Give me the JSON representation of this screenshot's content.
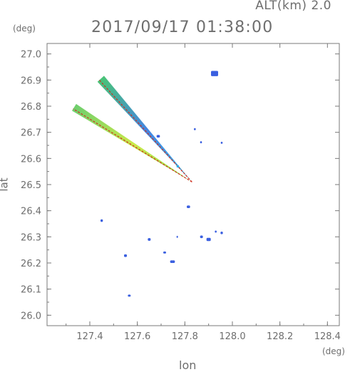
{
  "header": {
    "altitude_label": "ALT(km) 2.0",
    "timestamp": "2017/09/17 01:38:00"
  },
  "chart_data": {
    "type": "scatter",
    "title": "",
    "xlabel": "lon",
    "ylabel": "lat",
    "xunit": "(deg)",
    "yunit": "(deg)",
    "xlim": [
      127.22,
      128.45
    ],
    "ylim": [
      25.96,
      27.04
    ],
    "xticks": [
      127.4,
      127.6,
      127.8,
      128.0,
      128.2,
      128.4
    ],
    "yticks": [
      26.0,
      26.1,
      26.2,
      26.3,
      26.4,
      26.5,
      26.6,
      26.7,
      26.8,
      26.9,
      27.0
    ],
    "xtick_labels": [
      "127.4",
      "127.6",
      "127.8",
      "128.0",
      "128.2",
      "128.4"
    ],
    "ytick_labels": [
      "26.0",
      "26.1",
      "26.2",
      "26.3",
      "26.4",
      "26.5",
      "26.6",
      "26.7",
      "26.8",
      "26.9",
      "27.0"
    ],
    "grid": false,
    "colors": {
      "axis": "#7a7a7a",
      "echo_blue": "#3a5fe0",
      "echo_cyan": "#2ab0e8",
      "echo_green": "#88dd44",
      "echo_yellow": "#e6e640",
      "echo_red": "#d03020"
    },
    "streaks": [
      {
        "name": "upper",
        "from": [
          127.83,
          26.51
        ],
        "to": [
          127.44,
          26.9
        ],
        "width_deg": 0.012,
        "fill": [
          "#2ab0e8",
          "#3a7fe0",
          "#40c070"
        ]
      },
      {
        "name": "lower",
        "from": [
          127.83,
          26.51
        ],
        "to": [
          127.33,
          26.79
        ],
        "width_deg": 0.01,
        "fill": [
          "#88dd44",
          "#c8e840",
          "#66cc66"
        ]
      }
    ],
    "echoes": [
      {
        "x": 127.925,
        "y": 26.925,
        "w": 0.03,
        "h": 0.02,
        "color": "#3a5fe0"
      },
      {
        "x": 127.45,
        "y": 26.362,
        "w": 0.01,
        "h": 0.01,
        "color": "#3a5fe0"
      },
      {
        "x": 127.65,
        "y": 26.29,
        "w": 0.012,
        "h": 0.01,
        "color": "#3a5fe0"
      },
      {
        "x": 127.55,
        "y": 26.228,
        "w": 0.012,
        "h": 0.01,
        "color": "#3a5fe0"
      },
      {
        "x": 127.715,
        "y": 26.24,
        "w": 0.012,
        "h": 0.008,
        "color": "#3a5fe0"
      },
      {
        "x": 127.748,
        "y": 26.205,
        "w": 0.02,
        "h": 0.01,
        "color": "#3a5fe0"
      },
      {
        "x": 127.566,
        "y": 26.075,
        "w": 0.012,
        "h": 0.008,
        "color": "#3a5fe0"
      },
      {
        "x": 127.87,
        "y": 26.3,
        "w": 0.012,
        "h": 0.01,
        "color": "#3a5fe0"
      },
      {
        "x": 127.9,
        "y": 26.29,
        "w": 0.018,
        "h": 0.012,
        "color": "#3a5fe0"
      },
      {
        "x": 127.955,
        "y": 26.315,
        "w": 0.01,
        "h": 0.01,
        "color": "#3a5fe0"
      },
      {
        "x": 127.93,
        "y": 26.32,
        "w": 0.008,
        "h": 0.008,
        "color": "#3a5fe0"
      },
      {
        "x": 127.815,
        "y": 26.415,
        "w": 0.014,
        "h": 0.01,
        "color": "#3a5fe0"
      },
      {
        "x": 127.688,
        "y": 26.685,
        "w": 0.014,
        "h": 0.01,
        "color": "#3a5fe0"
      },
      {
        "x": 127.868,
        "y": 26.662,
        "w": 0.008,
        "h": 0.008,
        "color": "#3a5fe0"
      },
      {
        "x": 127.955,
        "y": 26.66,
        "w": 0.008,
        "h": 0.008,
        "color": "#3a5fe0"
      },
      {
        "x": 127.842,
        "y": 26.712,
        "w": 0.008,
        "h": 0.008,
        "color": "#3a5fe0"
      },
      {
        "x": 127.768,
        "y": 26.3,
        "w": 0.006,
        "h": 0.008,
        "color": "#3a5fe0"
      },
      {
        "x": 127.77,
        "y": 26.57,
        "w": 0.01,
        "h": 0.01,
        "color": "#2ab0e8"
      }
    ]
  }
}
